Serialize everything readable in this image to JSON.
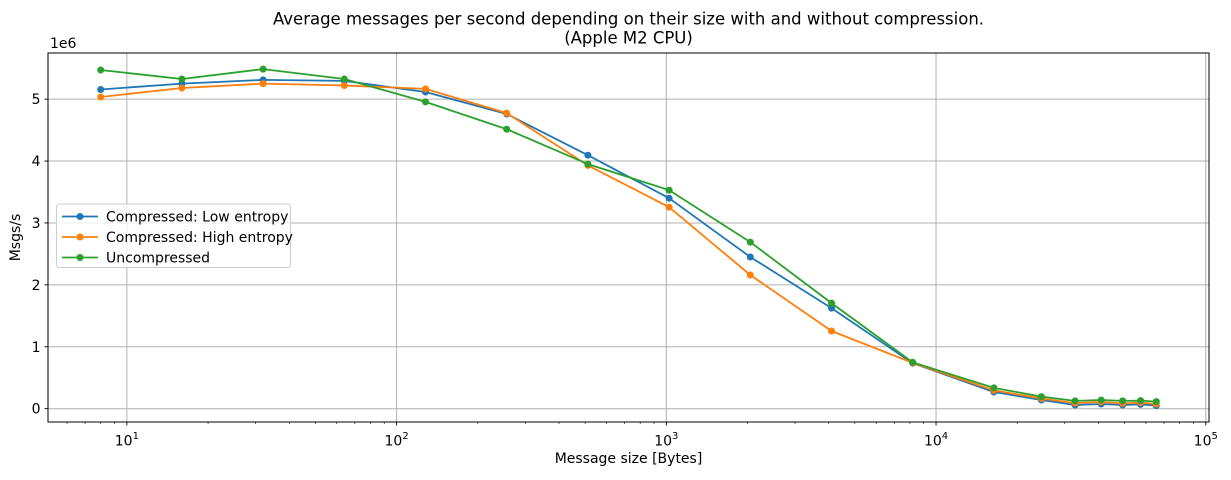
{
  "figure": {
    "background": "#ffffff",
    "text_color": "#000000",
    "grid_color": "#b0b0b0",
    "spine_color": "#000000",
    "legend_border_color": "#cccccc"
  },
  "chart_data": {
    "type": "line",
    "title": "Average messages per second depending on their size with and without compression.\n(Apple M2 CPU)",
    "title_line1": "Average messages per second depending on their size with and without compression.",
    "title_line2": "(Apple M2 CPU)",
    "xlabel": "Message size [Bytes]",
    "ylabel": "Msgs/s",
    "y_offset_label": "1e6",
    "x_scale": "log",
    "y_scale": "linear",
    "grid": true,
    "legend_position": "center-left",
    "xlim": [
      5.1,
      102800
    ],
    "ylim": [
      -215000,
      5745000
    ],
    "x_ticks": [
      {
        "value": 10,
        "label": "10¹",
        "base": "10",
        "exp": "1"
      },
      {
        "value": 100,
        "label": "10²",
        "base": "10",
        "exp": "2"
      },
      {
        "value": 1000,
        "label": "10³",
        "base": "10",
        "exp": "3"
      },
      {
        "value": 10000,
        "label": "10⁴",
        "base": "10",
        "exp": "4"
      },
      {
        "value": 100000,
        "label": "10⁵",
        "base": "10",
        "exp": "5"
      }
    ],
    "y_ticks": [
      {
        "value": 0,
        "label": "0"
      },
      {
        "value": 1000000,
        "label": "1"
      },
      {
        "value": 2000000,
        "label": "2"
      },
      {
        "value": 3000000,
        "label": "3"
      },
      {
        "value": 4000000,
        "label": "4"
      },
      {
        "value": 5000000,
        "label": "5"
      }
    ],
    "x": [
      8,
      16,
      32,
      64,
      128,
      256,
      512,
      1024,
      2048,
      4096,
      8192,
      16384,
      24576,
      32768,
      40960,
      49152,
      57344,
      65536
    ],
    "series": [
      {
        "name": "Compressed: Low entropy",
        "color": "#1f77b4",
        "values": [
          5155000,
          5250000,
          5310000,
          5295000,
          5115000,
          4760000,
          4095000,
          3400000,
          2450000,
          1625000,
          735000,
          270000,
          140000,
          60000,
          75000,
          60000,
          70000,
          50000
        ]
      },
      {
        "name": "Compressed: High entropy",
        "color": "#ff7f0e",
        "values": [
          5035000,
          5180000,
          5250000,
          5220000,
          5165000,
          4775000,
          3930000,
          3255000,
          2160000,
          1255000,
          740000,
          295000,
          165000,
          90000,
          110000,
          85000,
          100000,
          75000
        ]
      },
      {
        "name": "Uncompressed",
        "color": "#2ca02c",
        "values": [
          5470000,
          5325000,
          5485000,
          5325000,
          4955000,
          4515000,
          3950000,
          3530000,
          2690000,
          1705000,
          750000,
          335000,
          195000,
          125000,
          140000,
          125000,
          130000,
          115000
        ]
      }
    ]
  }
}
